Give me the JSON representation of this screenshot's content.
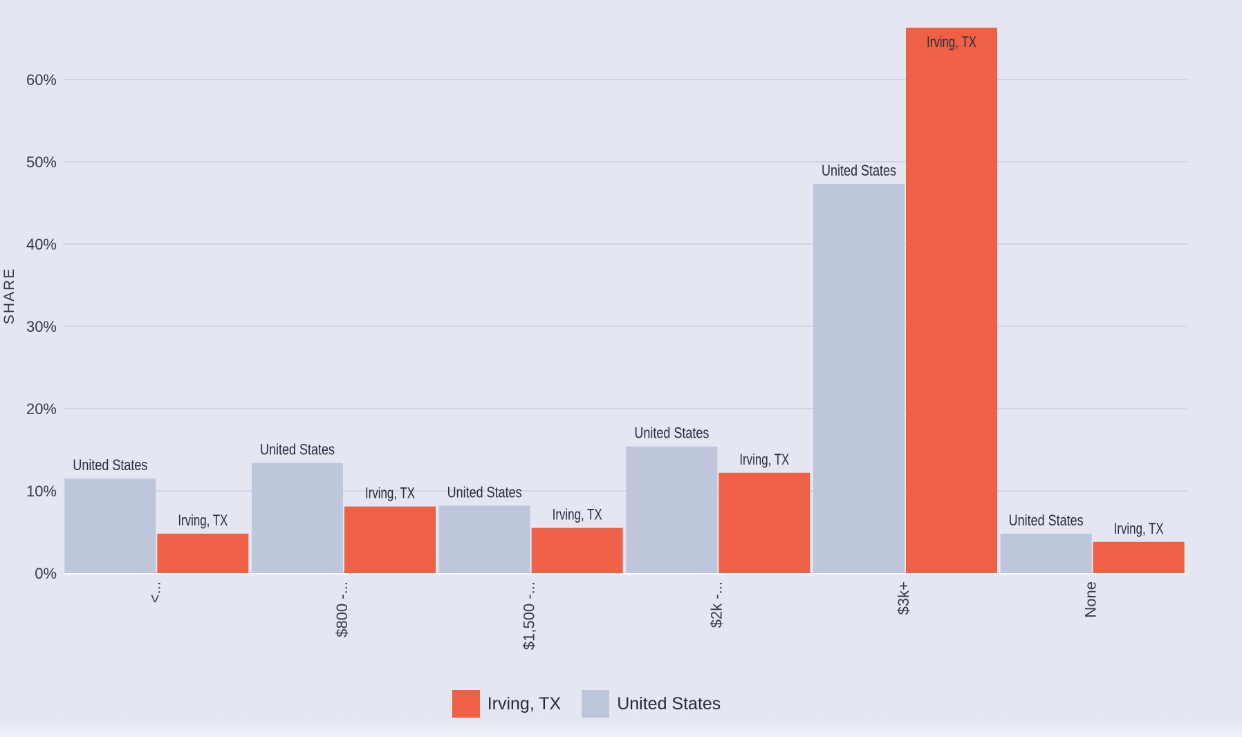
{
  "chart_data": {
    "type": "bar",
    "title": "",
    "xlabel": "",
    "ylabel": "SHARE",
    "ylim": [
      0,
      66
    ],
    "yticks": [
      "0%",
      "10%",
      "20%",
      "30%",
      "40%",
      "50%",
      "60%"
    ],
    "ytick_values": [
      0,
      10,
      20,
      30,
      40,
      50,
      60
    ],
    "categories": [
      "<...",
      "$800 -...",
      "$1,500 -...",
      "$2k -...",
      "$3k+",
      "None"
    ],
    "series": [
      {
        "name": "United States",
        "color": "#bec6dc",
        "values": [
          11.5,
          13.4,
          8.2,
          15.4,
          47.3,
          4.8
        ]
      },
      {
        "name": "Irving, TX",
        "color": "#ee6146",
        "values": [
          4.8,
          8.1,
          5.5,
          12.2,
          66.3,
          3.8
        ]
      }
    ],
    "grid": true,
    "legend": {
      "position": "bottom-center",
      "entries": [
        {
          "name": "Irving, TX",
          "color": "#ee6146"
        },
        {
          "name": "United States",
          "color": "#bec6dc"
        }
      ]
    }
  }
}
